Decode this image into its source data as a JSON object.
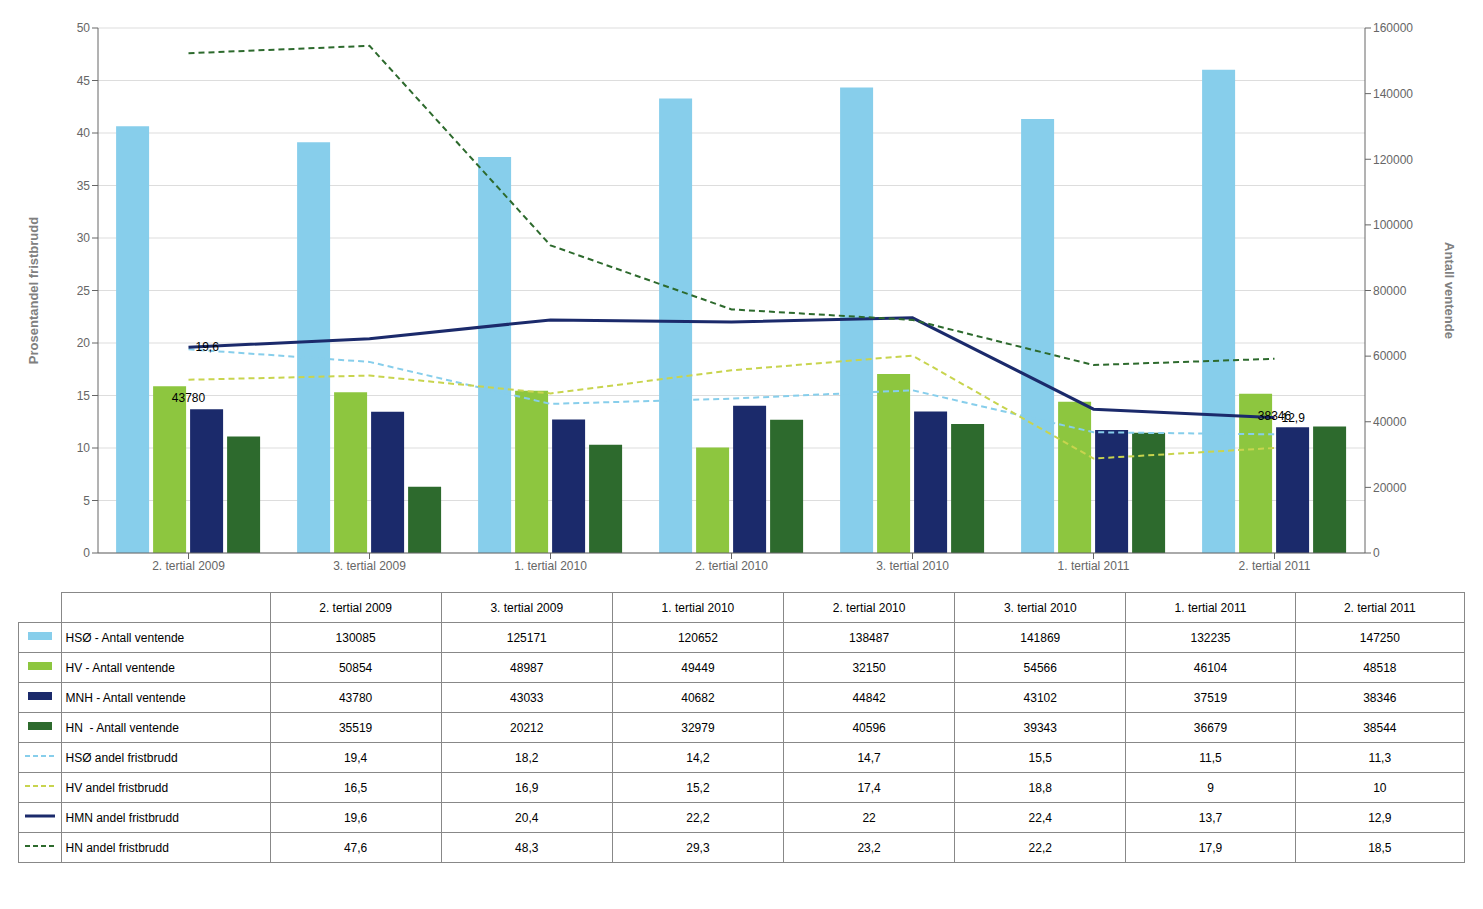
{
  "chart_data": {
    "type": "bar",
    "categories": [
      "2. tertial 2009",
      "3. tertial 2009",
      "1. tertial 2010",
      "2. tertial 2010",
      "3. tertial 2010",
      "1. tertial 2011",
      "2. tertial 2011"
    ],
    "ylabel": "Prosentandel fristbrudd",
    "y2label": "Antall ventende",
    "ylim": [
      0,
      50
    ],
    "yticks": [
      0,
      5,
      10,
      15,
      20,
      25,
      30,
      35,
      40,
      45,
      50
    ],
    "y2lim": [
      0,
      160000
    ],
    "y2ticks": [
      0,
      20000,
      40000,
      60000,
      80000,
      100000,
      120000,
      140000,
      160000
    ],
    "grid": true,
    "series": [
      {
        "name": "HSØ - Antall ventende",
        "type": "bar",
        "axis": "y2",
        "color": "#87CEEB",
        "values": [
          130085,
          125171,
          120652,
          138487,
          141869,
          132235,
          147250
        ]
      },
      {
        "name": "HV - Antall ventende",
        "type": "bar",
        "axis": "y2",
        "color": "#8DC63F",
        "values": [
          50854,
          48987,
          49449,
          32150,
          54566,
          46104,
          48518
        ]
      },
      {
        "name": "MNH - Antall ventende",
        "type": "bar",
        "axis": "y2",
        "color": "#1B2A6B",
        "values": [
          43780,
          43033,
          40682,
          44842,
          43102,
          37519,
          38346
        ]
      },
      {
        "name": "HN  - Antall ventende",
        "type": "bar",
        "axis": "y2",
        "color": "#2D6A2D",
        "values": [
          35519,
          20212,
          32979,
          40596,
          39343,
          36679,
          38544
        ]
      },
      {
        "name": "HSØ andel fristbrudd",
        "type": "line",
        "line_style": "dashed",
        "color": "#87CEEB",
        "values": [
          19.4,
          18.2,
          14.2,
          14.7,
          15.5,
          11.5,
          11.3
        ],
        "value_labels": [
          "19,4",
          "18,2",
          "14,2",
          "14,7",
          "15,5",
          "11,5",
          "11,3"
        ]
      },
      {
        "name": "HV andel fristbrudd",
        "type": "line",
        "line_style": "dashed",
        "color": "#C8D44E",
        "values": [
          16.5,
          16.9,
          15.2,
          17.4,
          18.8,
          9.0,
          10.0
        ],
        "value_labels": [
          "16,5",
          "16,9",
          "15,2",
          "17,4",
          "18,8",
          "9",
          "10"
        ]
      },
      {
        "name": "HMN andel fristbrudd",
        "type": "line",
        "line_style": "solid",
        "color": "#1B2A6B",
        "values": [
          19.6,
          20.4,
          22.2,
          22.0,
          22.4,
          13.7,
          12.9
        ],
        "value_labels": [
          "19,6",
          "20,4",
          "22,2",
          "22",
          "22,4",
          "13,7",
          "12,9"
        ]
      },
      {
        "name": "HN andel fristbrudd",
        "type": "line",
        "line_style": "dashed",
        "color": "#2D6A2D",
        "values": [
          47.6,
          48.3,
          29.3,
          23.2,
          22.2,
          17.9,
          18.5
        ],
        "value_labels": [
          "47,6",
          "48,3",
          "29,3",
          "23,2",
          "22,2",
          "17,9",
          "18,5"
        ]
      }
    ],
    "annotations": [
      {
        "text": "19,6",
        "x": "2. tertial 2009",
        "y": 19.6
      },
      {
        "text": "43780",
        "x": "2. tertial 2009",
        "y": 43780,
        "axis": "y2"
      },
      {
        "text": "12,9",
        "x": "2. tertial 2011",
        "y": 12.9
      },
      {
        "text": "38346",
        "x": "2. tertial 2011",
        "y": 38346,
        "axis": "y2"
      }
    ]
  }
}
